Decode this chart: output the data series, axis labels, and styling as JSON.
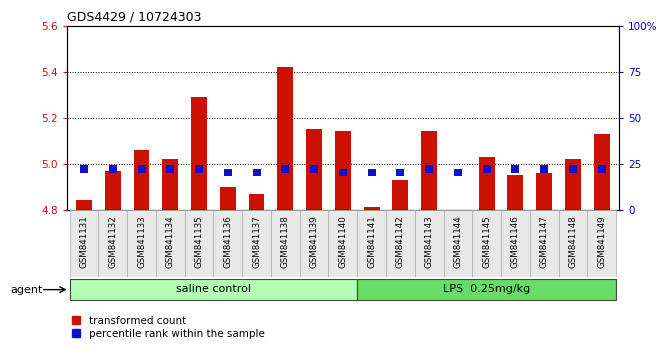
{
  "title": "GDS4429 / 10724303",
  "samples": [
    "GSM841131",
    "GSM841132",
    "GSM841133",
    "GSM841134",
    "GSM841135",
    "GSM841136",
    "GSM841137",
    "GSM841138",
    "GSM841139",
    "GSM841140",
    "GSM841141",
    "GSM841142",
    "GSM841143",
    "GSM841144",
    "GSM841145",
    "GSM841146",
    "GSM841147",
    "GSM841148",
    "GSM841149"
  ],
  "transformed_count": [
    4.84,
    4.97,
    5.06,
    5.02,
    5.29,
    4.9,
    4.87,
    5.42,
    5.15,
    5.14,
    4.81,
    4.93,
    5.14,
    4.8,
    5.03,
    4.95,
    4.96,
    5.02,
    5.13
  ],
  "percentile_rank": [
    22,
    22,
    22,
    22,
    22,
    20,
    20,
    22,
    22,
    20,
    20,
    20,
    22,
    20,
    22,
    22,
    22,
    22,
    22
  ],
  "ylim_left": [
    4.8,
    5.6
  ],
  "ylim_right": [
    0,
    100
  ],
  "yticks_left": [
    4.8,
    5.0,
    5.2,
    5.4,
    5.6
  ],
  "yticks_right": [
    0,
    25,
    50,
    75,
    100
  ],
  "groups": [
    {
      "label": "saline control",
      "start": 0,
      "end": 9,
      "color": "#b3ffb3"
    },
    {
      "label": "LPS  0.25mg/kg",
      "start": 10,
      "end": 18,
      "color": "#66dd66"
    }
  ],
  "bar_color_red": "#cc1100",
  "bar_color_blue": "#1111cc",
  "bar_width": 0.55,
  "background_color": "#ffffff",
  "legend_items": [
    {
      "label": "transformed count",
      "color": "#cc1100"
    },
    {
      "label": "percentile rank within the sample",
      "color": "#1111cc"
    }
  ],
  "agent_label": "agent",
  "left_axis_color": "#cc1100",
  "right_axis_color": "#0000cc"
}
